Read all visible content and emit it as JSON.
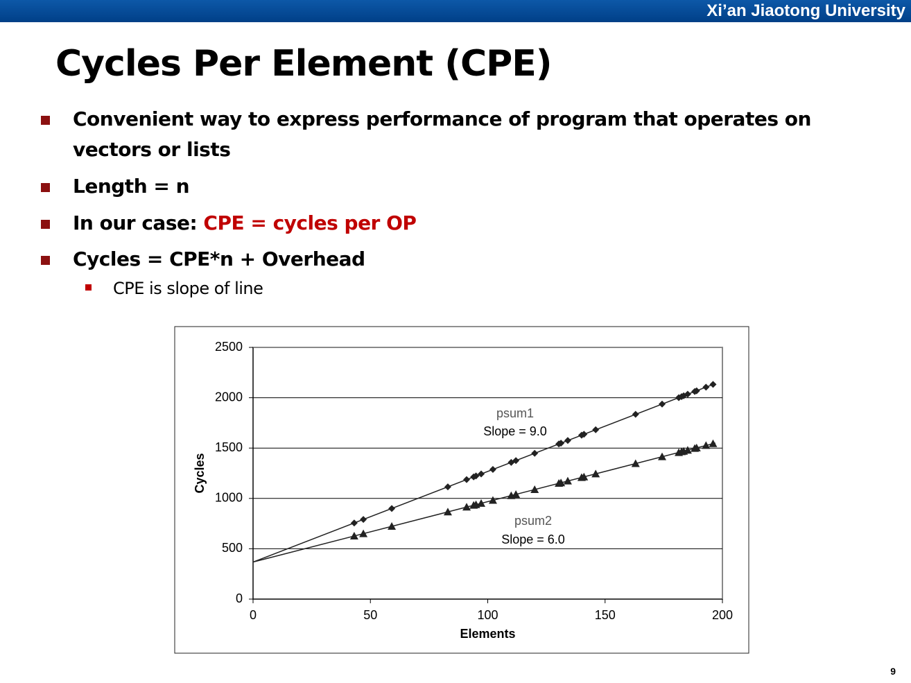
{
  "header": {
    "university": "Xi’an Jiaotong University"
  },
  "title": "Cycles Per Element (CPE)",
  "bullets": [
    {
      "parts": [
        {
          "text": "Convenient way to express performance of program that operates on vectors or lists"
        }
      ]
    },
    {
      "parts": [
        {
          "text": "Length = n"
        }
      ]
    },
    {
      "parts": [
        {
          "text": "In our case: "
        },
        {
          "text": "CPE = cycles per OP",
          "color": "#c00000"
        }
      ]
    },
    {
      "parts": [
        {
          "text": "Cycles = CPE*n + Overhead"
        }
      ],
      "sub": [
        "CPE is slope of line"
      ]
    }
  ],
  "page_number": "9",
  "chart_data": {
    "type": "scatter",
    "xlabel": "Elements",
    "ylabel": "Cycles",
    "xlim": [
      0,
      200
    ],
    "ylim": [
      0,
      2500
    ],
    "xticks": [
      0,
      50,
      100,
      150,
      200
    ],
    "yticks": [
      0,
      500,
      1000,
      1500,
      2000,
      2500
    ],
    "grid": true,
    "x": [
      43.1,
      47,
      59.1,
      83,
      91,
      94,
      95,
      97.2,
      102.2,
      110,
      112,
      120,
      130.3,
      131.2,
      134.1,
      140,
      141,
      146,
      163,
      174.3,
      181.4,
      182.6,
      183.5,
      185.2,
      188.2,
      189,
      193,
      196
    ],
    "fit_x": [
      0,
      197
    ],
    "series": [
      {
        "name": "psum1",
        "annotation": "Slope = 9.0",
        "marker": "diamond",
        "color": "#222222",
        "values": [
          756,
          791,
          900,
          1115,
          1187,
          1214,
          1223,
          1243,
          1288,
          1358,
          1376,
          1448,
          1541,
          1549,
          1575,
          1628,
          1637,
          1682,
          1835,
          1937,
          2001,
          2011,
          2020,
          2035,
          2062,
          2069,
          2105,
          2132
        ],
        "fit_values": [
          368,
          2141
        ]
      },
      {
        "name": "psum2",
        "annotation": "Slope = 6.0",
        "marker": "triangle",
        "color": "#222222",
        "values": [
          627,
          650,
          723,
          866,
          914,
          932,
          938,
          951,
          981,
          1028,
          1040,
          1088,
          1150,
          1155,
          1173,
          1208,
          1214,
          1244,
          1346,
          1414,
          1456,
          1464,
          1469,
          1479,
          1497,
          1502,
          1526,
          1544
        ],
        "fit_values": [
          368,
          1550
        ]
      }
    ]
  }
}
